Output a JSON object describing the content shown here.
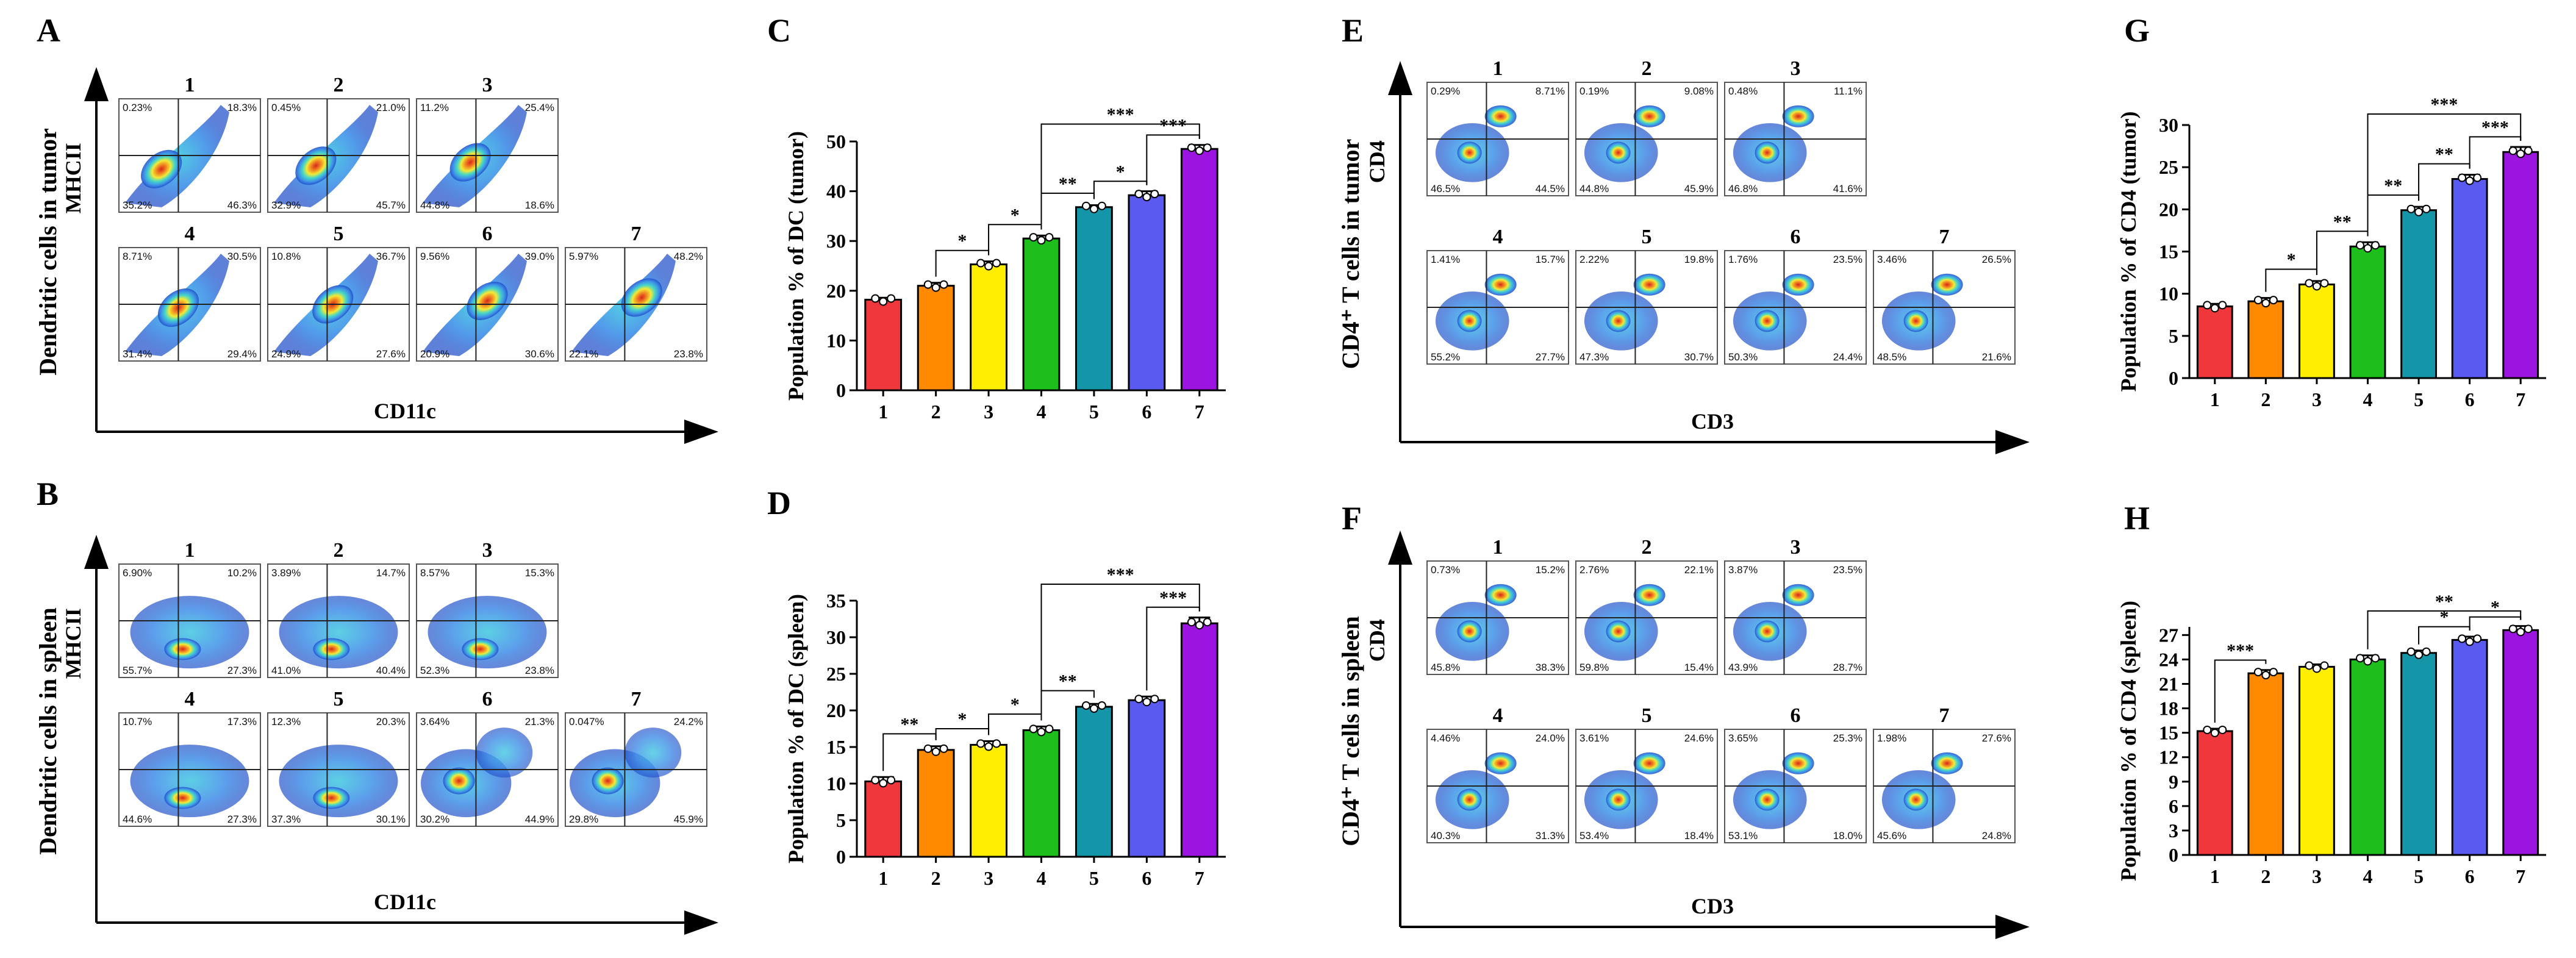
{
  "panel_labels": {
    "A": "A",
    "B": "B",
    "C": "C",
    "D": "D",
    "E": "E",
    "F": "F",
    "G": "G",
    "H": "H"
  },
  "colors": {
    "bars": [
      "#f0383c",
      "#ff8a00",
      "#ffee00",
      "#1cbf1c",
      "#1496a8",
      "#5a5af0",
      "#9b14e0"
    ],
    "flow": [
      "#1f4fc8",
      "#3f8fe8",
      "#45d6c8",
      "#f2ea36",
      "#f28a22",
      "#d8261c"
    ]
  },
  "flow_panels": [
    {
      "id": "A",
      "ylabel": "Dendritic cells in tumor",
      "y_marker": "MHCII",
      "x_marker": "CD11c",
      "plots": [
        {
          "n": "1",
          "ul": "0.23%",
          "ur": "18.3%",
          "ll": "35.2%",
          "lr": "46.3%"
        },
        {
          "n": "2",
          "ul": "0.45%",
          "ur": "21.0%",
          "ll": "32.9%",
          "lr": "45.7%"
        },
        {
          "n": "3",
          "ul": "11.2%",
          "ur": "25.4%",
          "ll": "44.8%",
          "lr": "18.6%"
        },
        {
          "n": "4",
          "ul": "8.71%",
          "ur": "30.5%",
          "ll": "31.4%",
          "lr": "29.4%"
        },
        {
          "n": "5",
          "ul": "10.8%",
          "ur": "36.7%",
          "ll": "24.9%",
          "lr": "27.6%"
        },
        {
          "n": "6",
          "ul": "9.56%",
          "ur": "39.0%",
          "ll": "20.9%",
          "lr": "30.6%"
        },
        {
          "n": "7",
          "ul": "5.97%",
          "ur": "48.2%",
          "ll": "22.1%",
          "lr": "23.8%"
        }
      ]
    },
    {
      "id": "B",
      "ylabel": "Dendritic cells in spleen",
      "y_marker": "MHCII",
      "x_marker": "CD11c",
      "plots": [
        {
          "n": "1",
          "ul": "6.90%",
          "ur": "10.2%",
          "ll": "55.7%",
          "lr": "27.3%"
        },
        {
          "n": "2",
          "ul": "3.89%",
          "ur": "14.7%",
          "ll": "41.0%",
          "lr": "40.4%"
        },
        {
          "n": "3",
          "ul": "8.57%",
          "ur": "15.3%",
          "ll": "52.3%",
          "lr": "23.8%"
        },
        {
          "n": "4",
          "ul": "10.7%",
          "ur": "17.3%",
          "ll": "44.6%",
          "lr": "27.3%"
        },
        {
          "n": "5",
          "ul": "12.3%",
          "ur": "20.3%",
          "ll": "37.3%",
          "lr": "30.1%"
        },
        {
          "n": "6",
          "ul": "3.64%",
          "ur": "21.3%",
          "ll": "30.2%",
          "lr": "44.9%"
        },
        {
          "n": "7",
          "ul": "0.047%",
          "ur": "24.2%",
          "ll": "29.8%",
          "lr": "45.9%"
        }
      ]
    },
    {
      "id": "E",
      "ylabel": "CD4⁺ T cells in tumor",
      "y_marker": "CD4",
      "x_marker": "CD3",
      "plots": [
        {
          "n": "1",
          "ul": "0.29%",
          "ur": "8.71%",
          "ll": "46.5%",
          "lr": "44.5%"
        },
        {
          "n": "2",
          "ul": "0.19%",
          "ur": "9.08%",
          "ll": "44.8%",
          "lr": "45.9%"
        },
        {
          "n": "3",
          "ul": "0.48%",
          "ur": "11.1%",
          "ll": "46.8%",
          "lr": "41.6%"
        },
        {
          "n": "4",
          "ul": "1.41%",
          "ur": "15.7%",
          "ll": "55.2%",
          "lr": "27.7%"
        },
        {
          "n": "5",
          "ul": "2.22%",
          "ur": "19.8%",
          "ll": "47.3%",
          "lr": "30.7%"
        },
        {
          "n": "6",
          "ul": "1.76%",
          "ur": "23.5%",
          "ll": "50.3%",
          "lr": "24.4%"
        },
        {
          "n": "7",
          "ul": "3.46%",
          "ur": "26.5%",
          "ll": "48.5%",
          "lr": "21.6%"
        }
      ]
    },
    {
      "id": "F",
      "ylabel": "CD4⁺ T cells in spleen",
      "y_marker": "CD4",
      "x_marker": "CD3",
      "plots": [
        {
          "n": "1",
          "ul": "0.73%",
          "ur": "15.2%",
          "ll": "45.8%",
          "lr": "38.3%"
        },
        {
          "n": "2",
          "ul": "2.76%",
          "ur": "22.1%",
          "ll": "59.8%",
          "lr": "15.4%"
        },
        {
          "n": "3",
          "ul": "3.87%",
          "ur": "23.5%",
          "ll": "43.9%",
          "lr": "28.7%"
        },
        {
          "n": "4",
          "ul": "4.46%",
          "ur": "24.0%",
          "ll": "40.3%",
          "lr": "31.3%"
        },
        {
          "n": "5",
          "ul": "3.61%",
          "ur": "24.6%",
          "ll": "53.4%",
          "lr": "18.4%"
        },
        {
          "n": "6",
          "ul": "3.65%",
          "ur": "25.3%",
          "ll": "53.1%",
          "lr": "18.0%"
        },
        {
          "n": "7",
          "ul": "1.98%",
          "ur": "27.6%",
          "ll": "45.6%",
          "lr": "24.8%"
        }
      ]
    }
  ],
  "chart_data": [
    {
      "id": "C",
      "type": "bar",
      "categories": [
        "1",
        "2",
        "3",
        "4",
        "5",
        "6",
        "7"
      ],
      "values": [
        18.2,
        21.0,
        25.3,
        30.5,
        36.8,
        39.2,
        48.5
      ],
      "errors": [
        0.4,
        0.6,
        0.6,
        0.6,
        0.4,
        0.8,
        0.8
      ],
      "ylabel": "Population % of DC (tumor)",
      "ylim": [
        0,
        50
      ],
      "yticks": [
        0,
        10,
        20,
        30,
        40,
        50
      ],
      "significance": [
        {
          "from": "2",
          "to": "3",
          "label": "*"
        },
        {
          "from": "3",
          "to": "4",
          "label": "*"
        },
        {
          "from": "4",
          "to": "5",
          "label": "**"
        },
        {
          "from": "5",
          "to": "6",
          "label": "*"
        },
        {
          "from": "6",
          "to": "7",
          "label": "***"
        },
        {
          "from": "4",
          "to": "7",
          "label": "***"
        }
      ]
    },
    {
      "id": "D",
      "type": "bar",
      "categories": [
        "1",
        "2",
        "3",
        "4",
        "5",
        "6",
        "7"
      ],
      "values": [
        10.3,
        14.6,
        15.3,
        17.3,
        20.5,
        21.4,
        31.9
      ],
      "errors": [
        0.6,
        0.5,
        0.5,
        0.5,
        0.4,
        0.5,
        0.8
      ],
      "ylabel": "Population % of DC (spleen)",
      "ylim": [
        0,
        35
      ],
      "yticks": [
        0,
        5,
        10,
        15,
        20,
        25,
        30,
        35
      ],
      "significance": [
        {
          "from": "1",
          "to": "2",
          "label": "**"
        },
        {
          "from": "2",
          "to": "3",
          "label": "*"
        },
        {
          "from": "3",
          "to": "4",
          "label": "*"
        },
        {
          "from": "4",
          "to": "5",
          "label": "**"
        },
        {
          "from": "6",
          "to": "7",
          "label": "***"
        },
        {
          "from": "4",
          "to": "7",
          "label": "***"
        }
      ]
    },
    {
      "id": "G",
      "type": "bar",
      "categories": [
        "1",
        "2",
        "3",
        "4",
        "5",
        "6",
        "7"
      ],
      "values": [
        8.5,
        9.1,
        11.1,
        15.6,
        19.9,
        23.6,
        26.8
      ],
      "errors": [
        0.3,
        0.4,
        0.4,
        0.5,
        0.4,
        0.5,
        0.6
      ],
      "ylabel": "Population % of CD4 (tumor)",
      "ylim": [
        0,
        30
      ],
      "yticks": [
        0,
        5,
        10,
        15,
        20,
        25,
        30
      ],
      "significance": [
        {
          "from": "2",
          "to": "3",
          "label": "*"
        },
        {
          "from": "3",
          "to": "4",
          "label": "**"
        },
        {
          "from": "4",
          "to": "5",
          "label": "**"
        },
        {
          "from": "5",
          "to": "6",
          "label": "**"
        },
        {
          "from": "6",
          "to": "7",
          "label": "***"
        },
        {
          "from": "4",
          "to": "7",
          "label": "***"
        }
      ]
    },
    {
      "id": "H",
      "type": "bar",
      "categories": [
        "1",
        "2",
        "3",
        "4",
        "5",
        "6",
        "7"
      ],
      "values": [
        15.2,
        22.3,
        23.1,
        24.0,
        24.8,
        26.4,
        27.6
      ],
      "errors": [
        0.3,
        0.4,
        0.3,
        0.5,
        0.3,
        0.4,
        0.5
      ],
      "ylabel": "Population % of CD4 (spleen)",
      "ylim": [
        0,
        28
      ],
      "yticks": [
        0,
        3,
        6,
        9,
        12,
        15,
        18,
        21,
        24,
        27
      ],
      "significance": [
        {
          "from": "1",
          "to": "2",
          "label": "***"
        },
        {
          "from": "5",
          "to": "6",
          "label": "*"
        },
        {
          "from": "6",
          "to": "7",
          "label": "*"
        },
        {
          "from": "4",
          "to": "7",
          "label": "**"
        }
      ]
    }
  ]
}
